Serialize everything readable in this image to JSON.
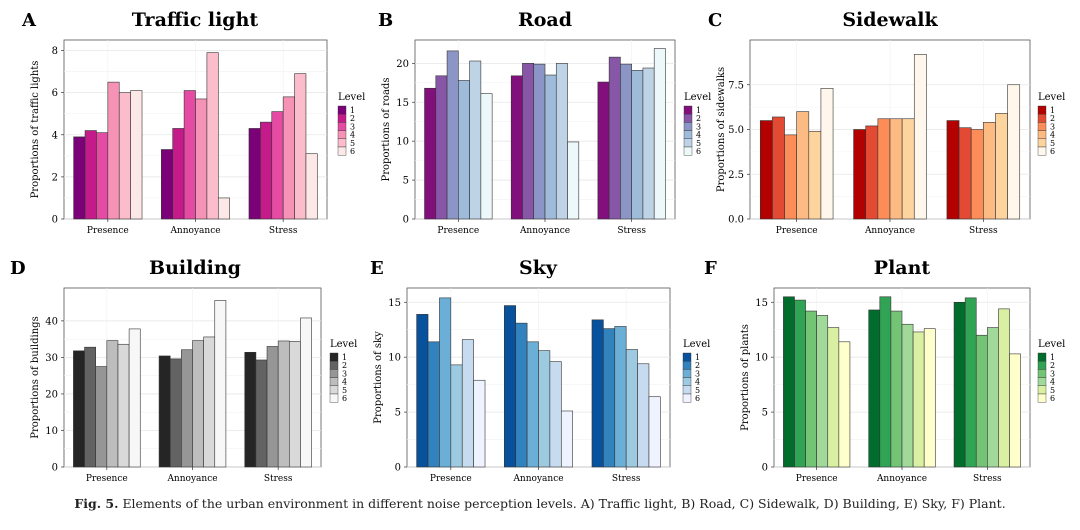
{
  "caption": {
    "label": "Fig. 5.",
    "text": "Elements of the urban environment in different noise perception levels. A) Traffic light, B) Road, C) Sidewalk, D) Building, E) Sky, F) Plant."
  },
  "legend_title": "Level",
  "legend_levels": [
    "1",
    "2",
    "3",
    "4",
    "5",
    "6"
  ],
  "chart_data": [
    {
      "panel": "A",
      "type": "bar",
      "title": "Traffic light",
      "xlabel": "",
      "ylabel": "Proportions of traffic lights",
      "categories": [
        "Presence",
        "Annoyance",
        "Stress"
      ],
      "ylim": [
        0,
        8.5
      ],
      "yticks": [
        0,
        2,
        4,
        6,
        8
      ],
      "colors": [
        "#7a0177",
        "#c51b8a",
        "#e64ba3",
        "#f692b6",
        "#fbbccb",
        "#fde8e8"
      ],
      "series": [
        {
          "name": "1",
          "values": [
            3.9,
            3.3,
            4.3
          ]
        },
        {
          "name": "2",
          "values": [
            4.2,
            4.3,
            4.6
          ]
        },
        {
          "name": "3",
          "values": [
            4.1,
            6.1,
            5.1
          ]
        },
        {
          "name": "4",
          "values": [
            6.5,
            5.7,
            5.8
          ]
        },
        {
          "name": "5",
          "values": [
            6.0,
            7.9,
            6.9
          ]
        },
        {
          "name": "6",
          "values": [
            6.1,
            1.0,
            3.1
          ]
        }
      ]
    },
    {
      "panel": "B",
      "type": "bar",
      "title": "Road",
      "xlabel": "",
      "ylabel": "Proportions of roads",
      "categories": [
        "Presence",
        "Annoyance",
        "Stress"
      ],
      "ylim": [
        0,
        23
      ],
      "yticks": [
        0,
        5,
        10,
        15,
        20
      ],
      "colors": [
        "#810f7c",
        "#8856a7",
        "#8c96c6",
        "#9ebcda",
        "#bfd3e6",
        "#edf8fb"
      ],
      "series": [
        {
          "name": "1",
          "values": [
            16.8,
            18.4,
            17.6
          ]
        },
        {
          "name": "2",
          "values": [
            18.4,
            20.0,
            20.8
          ]
        },
        {
          "name": "3",
          "values": [
            21.6,
            19.9,
            19.9
          ]
        },
        {
          "name": "4",
          "values": [
            17.8,
            18.5,
            19.1
          ]
        },
        {
          "name": "5",
          "values": [
            20.3,
            20.0,
            19.4
          ]
        },
        {
          "name": "6",
          "values": [
            16.1,
            9.9,
            21.9
          ]
        }
      ]
    },
    {
      "panel": "C",
      "type": "bar",
      "title": "Sidewalk",
      "xlabel": "",
      "ylabel": "Proportions of sidewalks",
      "categories": [
        "Presence",
        "Annoyance",
        "Stress"
      ],
      "ylim": [
        0,
        10.0
      ],
      "yticks": [
        0.0,
        2.5,
        5.0,
        7.5
      ],
      "tick_labels": [
        "0.0",
        "2.5",
        "5.0",
        "7.5"
      ],
      "colors": [
        "#b30000",
        "#e34a33",
        "#fc8d59",
        "#fdbb84",
        "#fdd49e",
        "#fff7ec"
      ],
      "series": [
        {
          "name": "1",
          "values": [
            5.5,
            5.0,
            5.5
          ]
        },
        {
          "name": "2",
          "values": [
            5.7,
            5.2,
            5.1
          ]
        },
        {
          "name": "3",
          "values": [
            4.7,
            5.6,
            5.0
          ]
        },
        {
          "name": "4",
          "values": [
            6.0,
            5.6,
            5.4
          ]
        },
        {
          "name": "5",
          "values": [
            4.9,
            5.6,
            5.9
          ]
        },
        {
          "name": "6",
          "values": [
            7.3,
            9.2,
            7.5
          ]
        }
      ]
    },
    {
      "panel": "D",
      "type": "bar",
      "title": "Building",
      "xlabel": "",
      "ylabel": "Proportions of buildings",
      "categories": [
        "Presence",
        "Annoyance",
        "Stress"
      ],
      "ylim": [
        0,
        49
      ],
      "yticks": [
        0,
        10,
        20,
        30,
        40
      ],
      "colors": [
        "#252525",
        "#636363",
        "#969696",
        "#bdbdbd",
        "#d9d9d9",
        "#f7f7f7"
      ],
      "series": [
        {
          "name": "1",
          "values": [
            31.8,
            30.4,
            31.4
          ]
        },
        {
          "name": "2",
          "values": [
            32.8,
            29.6,
            29.3
          ]
        },
        {
          "name": "3",
          "values": [
            27.5,
            32.1,
            33.0
          ]
        },
        {
          "name": "4",
          "values": [
            34.6,
            34.6,
            34.5
          ]
        },
        {
          "name": "5",
          "values": [
            33.6,
            35.6,
            34.4
          ]
        },
        {
          "name": "6",
          "values": [
            37.8,
            45.6,
            40.8
          ]
        }
      ]
    },
    {
      "panel": "E",
      "type": "bar",
      "title": "Sky",
      "xlabel": "",
      "ylabel": "Proportions of sky",
      "categories": [
        "Presence",
        "Annoyance",
        "Stress"
      ],
      "ylim": [
        0,
        16.3
      ],
      "yticks": [
        0,
        5,
        10,
        15
      ],
      "colors": [
        "#08519c",
        "#3182bd",
        "#6baed6",
        "#9ecae1",
        "#c6dbef",
        "#eff3ff"
      ],
      "series": [
        {
          "name": "1",
          "values": [
            13.9,
            14.7,
            13.4
          ]
        },
        {
          "name": "2",
          "values": [
            11.4,
            13.1,
            12.6
          ]
        },
        {
          "name": "3",
          "values": [
            15.4,
            11.4,
            12.8
          ]
        },
        {
          "name": "4",
          "values": [
            9.3,
            10.6,
            10.7
          ]
        },
        {
          "name": "5",
          "values": [
            11.6,
            9.6,
            9.4
          ]
        },
        {
          "name": "6",
          "values": [
            7.9,
            5.1,
            6.4
          ]
        }
      ]
    },
    {
      "panel": "F",
      "type": "bar",
      "title": "Plant",
      "xlabel": "",
      "ylabel": "Proportions of plants",
      "categories": [
        "Presence",
        "Annoyance",
        "Stress"
      ],
      "ylim": [
        0,
        16.3
      ],
      "yticks": [
        0,
        5,
        10,
        15
      ],
      "colors": [
        "#006d2c",
        "#31a354",
        "#74c476",
        "#a1d99b",
        "#d9f0a3",
        "#ffffcc"
      ],
      "series": [
        {
          "name": "1",
          "values": [
            15.5,
            14.3,
            15.0
          ]
        },
        {
          "name": "2",
          "values": [
            15.2,
            15.5,
            15.4
          ]
        },
        {
          "name": "3",
          "values": [
            14.2,
            14.2,
            12.0
          ]
        },
        {
          "name": "4",
          "values": [
            13.8,
            13.0,
            12.7
          ]
        },
        {
          "name": "5",
          "values": [
            12.7,
            12.3,
            14.4
          ]
        },
        {
          "name": "6",
          "values": [
            11.4,
            12.6,
            10.3
          ]
        }
      ]
    }
  ]
}
